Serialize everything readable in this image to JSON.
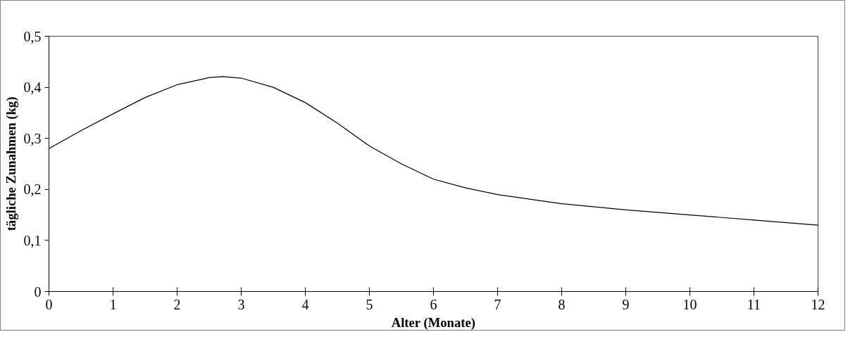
{
  "chart_data": {
    "type": "line",
    "xlabel": "Alter (Monate)",
    "ylabel": "tägliche Zunahmen (kg)",
    "x": [
      0,
      0.5,
      1,
      1.5,
      2,
      2.5,
      2.7,
      3,
      3.5,
      4,
      4.5,
      5,
      5.5,
      6,
      6.5,
      7,
      8,
      9,
      10,
      11,
      12
    ],
    "series": [
      {
        "color": "#000000",
        "values": [
          0.28,
          0.315,
          0.348,
          0.38,
          0.405,
          0.419,
          0.421,
          0.418,
          0.4,
          0.37,
          0.33,
          0.285,
          0.25,
          0.22,
          0.203,
          0.19,
          0.172,
          0.16,
          0.15,
          0.14,
          0.13
        ]
      }
    ],
    "xlim": [
      0,
      12
    ],
    "xticks": [
      0,
      1,
      2,
      3,
      4,
      5,
      6,
      7,
      8,
      9,
      10,
      11,
      12
    ],
    "ylim": [
      0,
      0.5
    ],
    "yticks": [
      0,
      {
        "value": 0.1,
        "label": "0,1"
      },
      {
        "value": 0.2,
        "label": "0,2"
      },
      {
        "value": 0.3,
        "label": "0,3"
      },
      {
        "value": 0.4,
        "label": "0,4"
      },
      {
        "value": 0.5,
        "label": "0,5"
      }
    ],
    "grid": false,
    "marker": "none",
    "line_style": "solid"
  }
}
